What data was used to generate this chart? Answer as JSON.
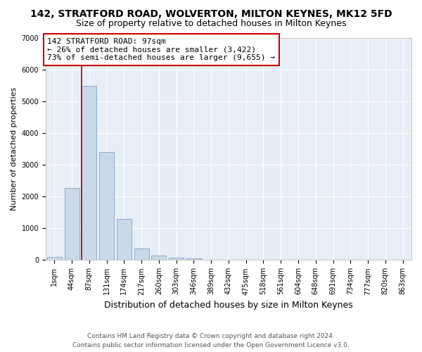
{
  "title": "142, STRATFORD ROAD, WOLVERTON, MILTON KEYNES, MK12 5FD",
  "subtitle": "Size of property relative to detached houses in Milton Keynes",
  "xlabel": "Distribution of detached houses by size in Milton Keynes",
  "ylabel": "Number of detached properties",
  "footer_line1": "Contains HM Land Registry data © Crown copyright and database right 2024.",
  "footer_line2": "Contains public sector information licensed under the Open Government Licence v3.0.",
  "bar_labels": [
    "1sqm",
    "44sqm",
    "87sqm",
    "131sqm",
    "174sqm",
    "217sqm",
    "260sqm",
    "303sqm",
    "346sqm",
    "389sqm",
    "432sqm",
    "475sqm",
    "518sqm",
    "561sqm",
    "604sqm",
    "648sqm",
    "691sqm",
    "734sqm",
    "777sqm",
    "820sqm",
    "863sqm"
  ],
  "bar_values": [
    100,
    2270,
    5480,
    3400,
    1290,
    370,
    150,
    70,
    50,
    0,
    0,
    0,
    0,
    0,
    0,
    0,
    0,
    0,
    0,
    0,
    0
  ],
  "bar_color": "#c9d9ea",
  "bar_edge_color": "#8aaccf",
  "ylim": [
    0,
    7000
  ],
  "yticks": [
    0,
    1000,
    2000,
    3000,
    4000,
    5000,
    6000,
    7000
  ],
  "property_line_color": "#aa0000",
  "annotation_text": "142 STRATFORD ROAD: 97sqm\n← 26% of detached houses are smaller (3,422)\n73% of semi-detached houses are larger (9,655) →",
  "annotation_box_color": "#ffffff",
  "annotation_box_edge_color": "#cc0000",
  "bg_color": "#ffffff",
  "plot_bg_color": "#e8eef5",
  "grid_color": "#ffffff",
  "title_fontsize": 10,
  "subtitle_fontsize": 9,
  "annotation_fontsize": 8,
  "ylabel_fontsize": 8,
  "xlabel_fontsize": 9,
  "tick_fontsize": 7,
  "footer_fontsize": 6.5
}
